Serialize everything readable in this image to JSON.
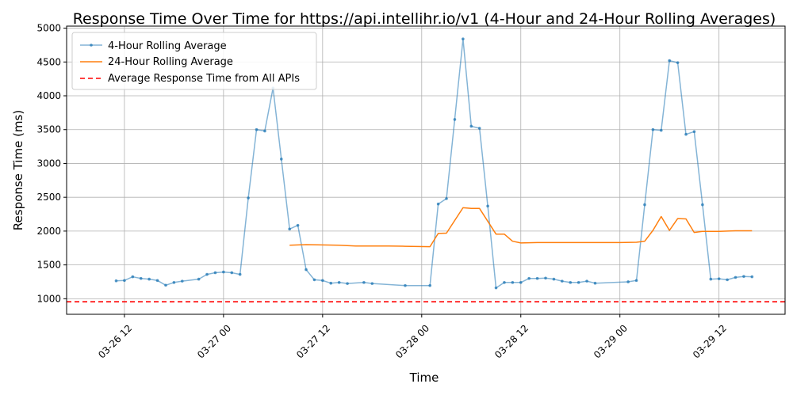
{
  "chart_data": {
    "type": "line",
    "title": "Response Time Over Time for https://api.intellihr.io/v1 (4-Hour and 24-Hour Rolling Averages)",
    "xlabel": "Time",
    "ylabel": "Response Time (ms)",
    "xlim": [
      "2026-03-26T05:00",
      "2026-03-29T20:00"
    ],
    "ylim": [
      770,
      5030
    ],
    "x_ticks": [
      {
        "t": "2026-03-26T12:00",
        "label": "03-26 12"
      },
      {
        "t": "2026-03-27T00:00",
        "label": "03-27 00"
      },
      {
        "t": "2026-03-27T12:00",
        "label": "03-27 12"
      },
      {
        "t": "2026-03-28T00:00",
        "label": "03-28 00"
      },
      {
        "t": "2026-03-28T12:00",
        "label": "03-28 12"
      },
      {
        "t": "2026-03-29T00:00",
        "label": "03-29 00"
      },
      {
        "t": "2026-03-29T12:00",
        "label": "03-29 12"
      }
    ],
    "y_ticks": [
      1000,
      1500,
      2000,
      2500,
      3000,
      3500,
      4000,
      4500,
      5000
    ],
    "grid": true,
    "legend_position": "top-left",
    "series": [
      {
        "name": "4-Hour Rolling Average",
        "color": "#1f77b4",
        "style": "line-markers",
        "x": [
          "2026-03-26T11:00",
          "2026-03-26T12:00",
          "2026-03-26T13:00",
          "2026-03-26T14:00",
          "2026-03-26T15:00",
          "2026-03-26T16:00",
          "2026-03-26T17:00",
          "2026-03-26T18:00",
          "2026-03-26T19:00",
          "2026-03-26T21:00",
          "2026-03-26T22:00",
          "2026-03-26T23:00",
          "2026-03-27T00:00",
          "2026-03-27T01:00",
          "2026-03-27T02:00",
          "2026-03-27T03:00",
          "2026-03-27T04:00",
          "2026-03-27T05:00",
          "2026-03-27T06:00",
          "2026-03-27T07:00",
          "2026-03-27T08:00",
          "2026-03-27T09:00",
          "2026-03-27T10:00",
          "2026-03-27T11:00",
          "2026-03-27T12:00",
          "2026-03-27T13:00",
          "2026-03-27T14:00",
          "2026-03-27T15:00",
          "2026-03-27T17:00",
          "2026-03-27T18:00",
          "2026-03-27T22:00",
          "2026-03-28T01:00",
          "2026-03-28T02:00",
          "2026-03-28T03:00",
          "2026-03-28T04:00",
          "2026-03-28T05:00",
          "2026-03-28T06:00",
          "2026-03-28T07:00",
          "2026-03-28T08:00",
          "2026-03-28T09:00",
          "2026-03-28T10:00",
          "2026-03-28T11:00",
          "2026-03-28T12:00",
          "2026-03-28T13:00",
          "2026-03-28T14:00",
          "2026-03-28T15:00",
          "2026-03-28T16:00",
          "2026-03-28T17:00",
          "2026-03-28T18:00",
          "2026-03-28T19:00",
          "2026-03-28T20:00",
          "2026-03-28T21:00",
          "2026-03-29T01:00",
          "2026-03-29T02:00",
          "2026-03-29T03:00",
          "2026-03-29T04:00",
          "2026-03-29T05:00",
          "2026-03-29T06:00",
          "2026-03-29T07:00",
          "2026-03-29T08:00",
          "2026-03-29T09:00",
          "2026-03-29T10:00",
          "2026-03-29T11:00",
          "2026-03-29T12:00",
          "2026-03-29T13:00",
          "2026-03-29T14:00",
          "2026-03-29T15:00",
          "2026-03-29T16:00"
        ],
        "y": [
          1265,
          1270,
          1325,
          1300,
          1290,
          1270,
          1200,
          1240,
          1260,
          1290,
          1360,
          1385,
          1395,
          1385,
          1360,
          2490,
          3500,
          3480,
          4115,
          3065,
          2030,
          2085,
          1430,
          1280,
          1270,
          1230,
          1240,
          1225,
          1240,
          1225,
          1195,
          1195,
          2400,
          2480,
          3650,
          4840,
          3550,
          3520,
          2370,
          1160,
          1240,
          1240,
          1240,
          1300,
          1300,
          1305,
          1290,
          1260,
          1240,
          1240,
          1260,
          1230,
          1250,
          1270,
          2390,
          3500,
          3490,
          4520,
          4490,
          3430,
          3470,
          2390,
          1290,
          1295,
          1280,
          1315,
          1330,
          1325
        ]
      },
      {
        "name": "24-Hour Rolling Average",
        "color": "#ff7f0e",
        "style": "line",
        "x": [
          "2026-03-27T08:00",
          "2026-03-27T10:00",
          "2026-03-27T12:00",
          "2026-03-27T14:00",
          "2026-03-27T16:00",
          "2026-03-27T18:00",
          "2026-03-27T20:00",
          "2026-03-27T22:00",
          "2026-03-28T01:00",
          "2026-03-28T02:00",
          "2026-03-28T03:00",
          "2026-03-28T05:00",
          "2026-03-28T06:00",
          "2026-03-28T07:00",
          "2026-03-28T09:00",
          "2026-03-28T10:00",
          "2026-03-28T11:00",
          "2026-03-28T12:00",
          "2026-03-28T14:00",
          "2026-03-28T16:00",
          "2026-03-28T18:00",
          "2026-03-28T20:00",
          "2026-03-28T22:00",
          "2026-03-29T00:00",
          "2026-03-29T02:00",
          "2026-03-29T03:00",
          "2026-03-29T04:00",
          "2026-03-29T05:00",
          "2026-03-29T06:00",
          "2026-03-29T07:00",
          "2026-03-29T08:00",
          "2026-03-29T09:00",
          "2026-03-29T10:00",
          "2026-03-29T12:00",
          "2026-03-29T14:00",
          "2026-03-29T16:00"
        ],
        "y": [
          1790,
          1800,
          1795,
          1790,
          1780,
          1780,
          1780,
          1775,
          1770,
          1965,
          1970,
          2345,
          2335,
          2335,
          1955,
          1955,
          1850,
          1825,
          1830,
          1830,
          1830,
          1830,
          1830,
          1830,
          1835,
          1850,
          2010,
          2215,
          2010,
          2185,
          2180,
          1980,
          1995,
          1995,
          2005,
          2005
        ]
      },
      {
        "name": "Average Response Time from All APIs",
        "color": "#ff0000",
        "style": "dashed-hline",
        "y": 955
      }
    ]
  }
}
